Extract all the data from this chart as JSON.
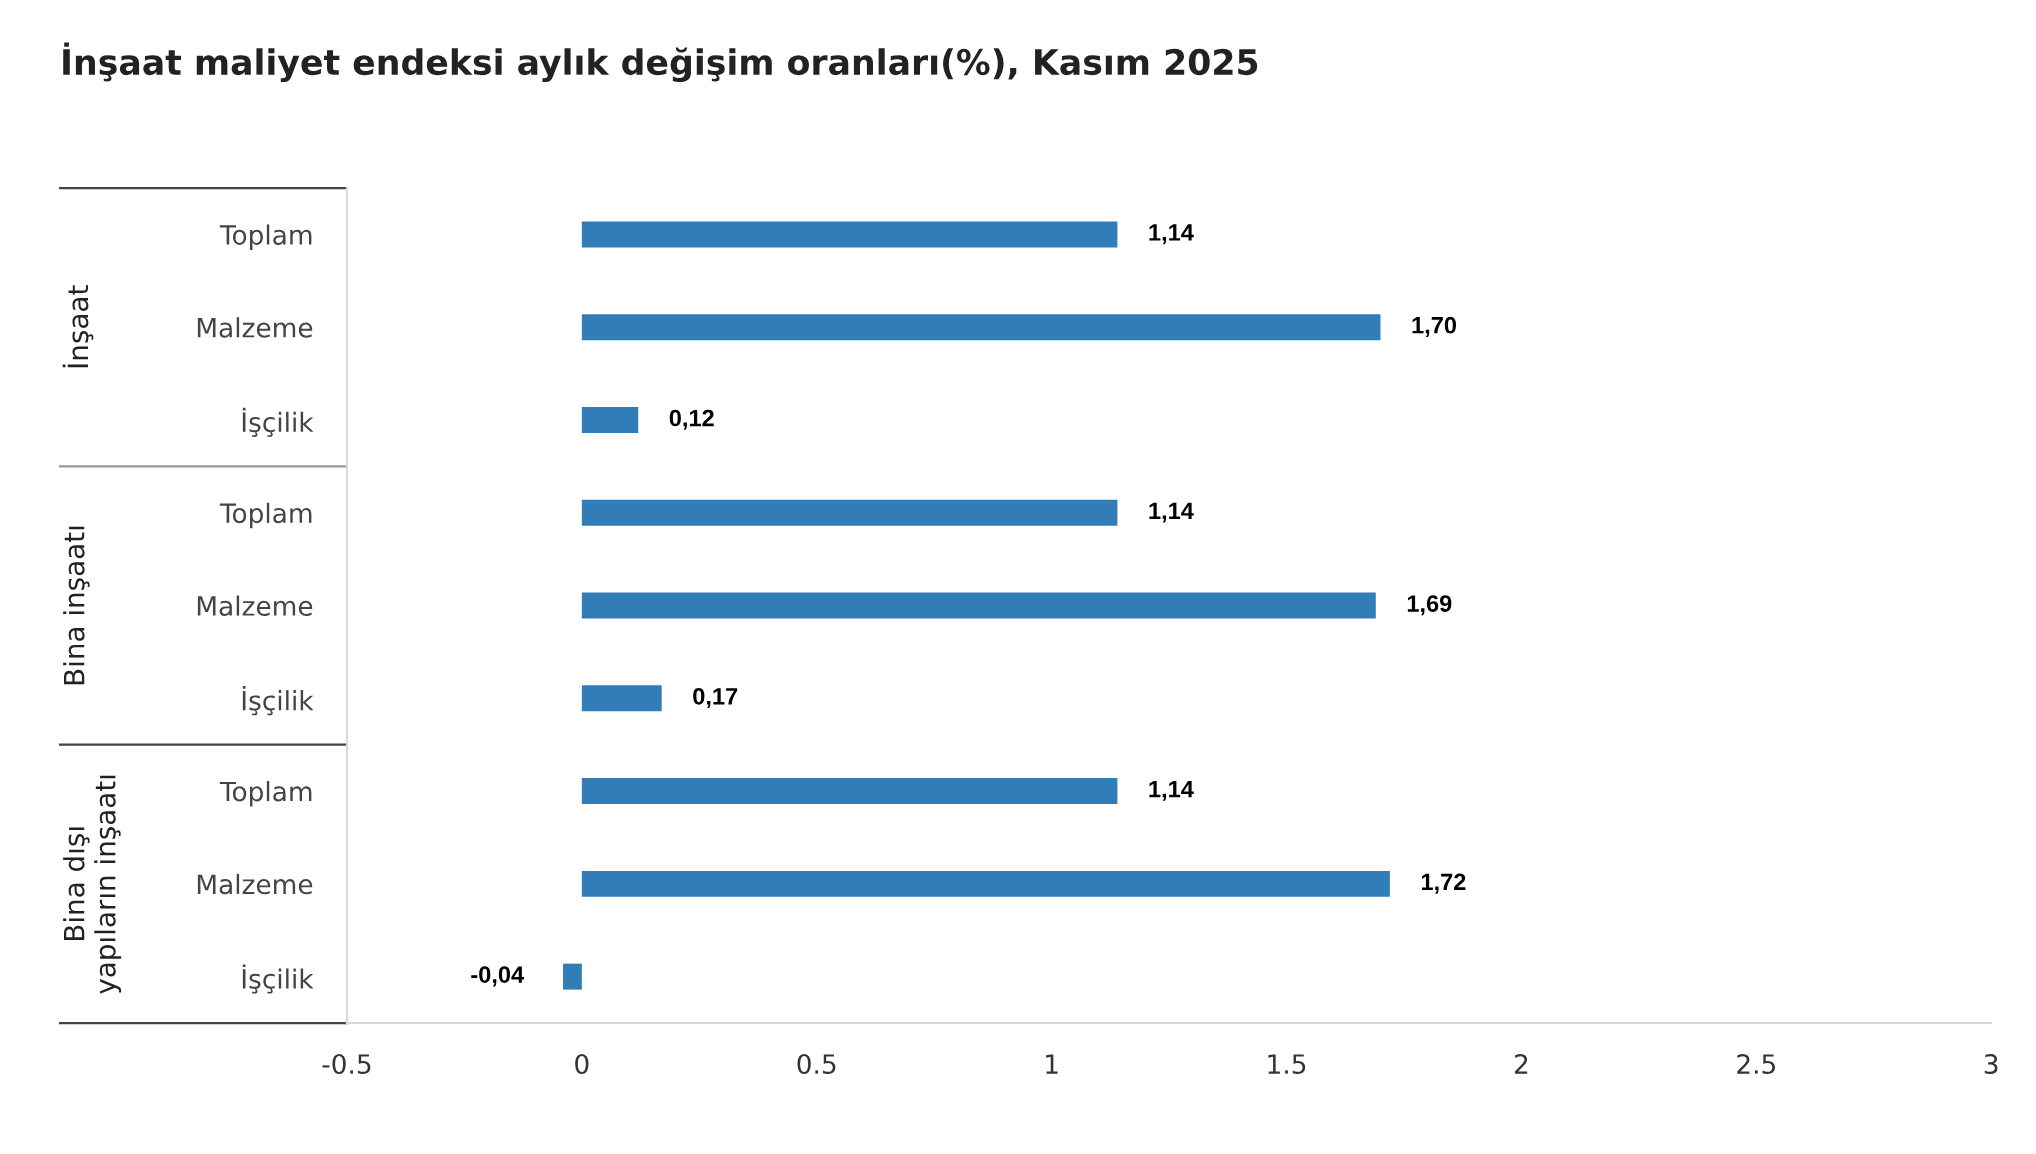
{
  "chart_data": {
    "type": "bar",
    "orientation": "horizontal",
    "title": "İnşaat maliyet endeksi aylık değişim oranları(%), Kasım 2025",
    "categories": [
      "Toplam",
      "Malzeme",
      "İşçilik",
      "Toplam",
      "Malzeme",
      "İşçilik",
      "Toplam",
      "Malzeme",
      "İşçilik"
    ],
    "annotations": [
      "İnşaat",
      "Bina inşaatı",
      "Bina dışı\nyapıların inşaatı"
    ],
    "values": [
      1.14,
      1.7,
      0.12,
      1.14,
      1.69,
      0.17,
      1.14,
      1.72,
      -0.04
    ],
    "value_labels": [
      "1,14",
      "1,70",
      "0,12",
      "1,14",
      "1,69",
      "0,17",
      "1,14",
      "1,72",
      "-0,04"
    ],
    "color": "#317db8",
    "xlim": [
      -0.5,
      3
    ],
    "xticks": [
      -0.5,
      0,
      0.5,
      1,
      1.5,
      2,
      2.5,
      3
    ],
    "grid": false
  }
}
